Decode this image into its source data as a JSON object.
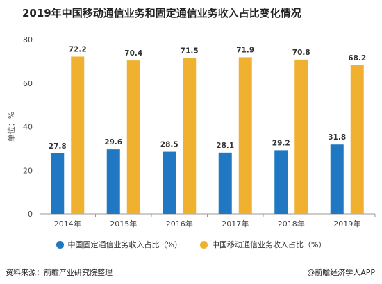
{
  "chart_data": {
    "type": "bar",
    "title": "2019年中国移动通信业务和固定通信业务收入占比变化情况",
    "ylabel": "单位：%",
    "xlabel": "",
    "categories": [
      "2014年",
      "2015年",
      "2016年",
      "2017年",
      "2018年",
      "2019年"
    ],
    "series": [
      {
        "name": "中国固定通信业务收入占比（%）",
        "color": "#1f78c1",
        "values": [
          27.8,
          29.6,
          28.5,
          28.1,
          29.2,
          31.8
        ]
      },
      {
        "name": "中国移动通信业务收入占比（%）",
        "color": "#f0b131",
        "values": [
          72.2,
          70.4,
          71.5,
          71.9,
          70.8,
          68.2
        ]
      }
    ],
    "ylim": [
      0,
      80
    ],
    "yticks": [
      0,
      20,
      40,
      60,
      80
    ],
    "grid": false,
    "legend_position": "bottom"
  },
  "footer": {
    "source": "资料来源：前瞻产业研究院整理",
    "brand": "@前瞻经济学人APP"
  }
}
